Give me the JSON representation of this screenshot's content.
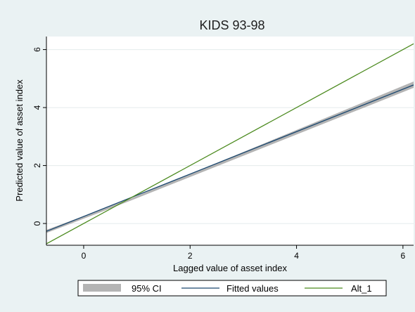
{
  "chart_data": {
    "type": "line",
    "title": "KIDS 93-98",
    "xlabel": "Lagged value of asset index",
    "ylabel": "Predicted value of asset index",
    "xlim": [
      -0.7,
      6.2
    ],
    "ylim": [
      -0.75,
      6.45
    ],
    "xticks": [
      0,
      2,
      4,
      6
    ],
    "yticks": [
      0,
      2,
      4,
      6
    ],
    "grid": "horizontal",
    "legend_position": "bottom",
    "colors": {
      "background": "#eaf2f3",
      "plot_background": "#ffffff",
      "grid": "#e4ebec",
      "ci_band": "#b4b4b4",
      "fitted": "#1a476f",
      "alt": "#4b8a1e"
    },
    "series": [
      {
        "name": "95% CI",
        "kind": "band",
        "x": [
          -0.7,
          0.9,
          6.2
        ],
        "lower": [
          -0.33,
          0.8,
          4.68
        ],
        "upper": [
          -0.22,
          0.87,
          4.9
        ]
      },
      {
        "name": "Fitted values",
        "kind": "line",
        "x": [
          -0.7,
          6.2
        ],
        "y": [
          -0.27,
          4.78
        ]
      },
      {
        "name": "Alt_1",
        "kind": "line",
        "x": [
          -0.7,
          6.2
        ],
        "y": [
          -0.7,
          6.2
        ]
      }
    ]
  }
}
